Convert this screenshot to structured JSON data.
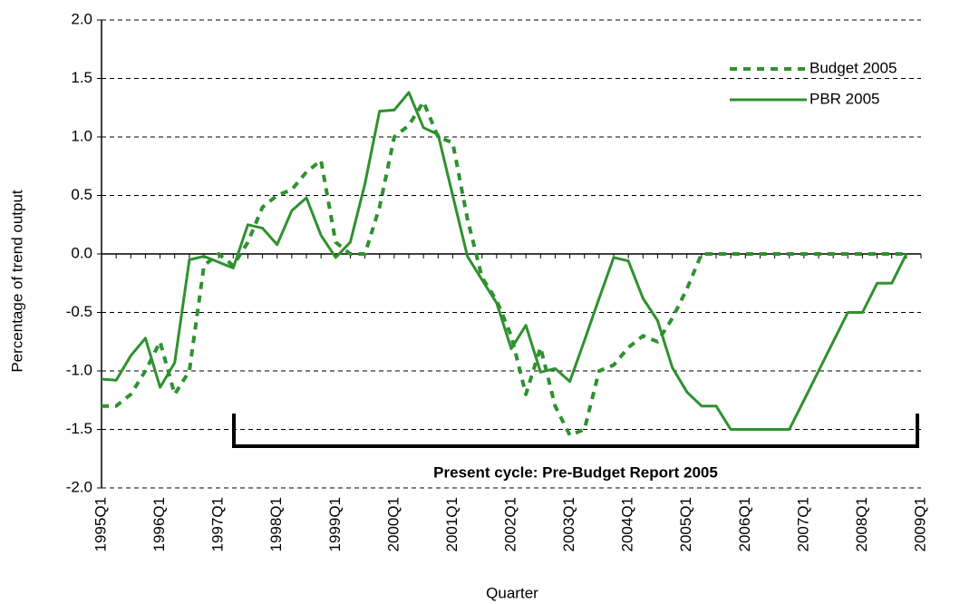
{
  "chart_data": {
    "type": "line",
    "y_label": "Percentage of trend output",
    "x_label": "Quarter",
    "annotation": "Present cycle: Pre-Budget Report 2005",
    "legend": "upper right",
    "grid": true,
    "categories": [
      "1995Q1",
      null,
      null,
      null,
      "1996Q1",
      null,
      null,
      null,
      "1997Q1",
      null,
      null,
      null,
      "1998Q1",
      null,
      null,
      null,
      "1999Q1",
      null,
      null,
      null,
      "2000Q1",
      null,
      null,
      null,
      "2001Q1",
      null,
      null,
      null,
      "2002Q1",
      null,
      null,
      null,
      "2003Q1",
      null,
      null,
      null,
      "2004Q1",
      null,
      null,
      null,
      "2005Q1",
      null,
      null,
      null,
      "2006Q1",
      null,
      null,
      null,
      "2007Q1",
      null,
      null,
      null,
      "2008Q1",
      null,
      null,
      null,
      "2009Q1"
    ],
    "series": [
      {
        "name": "Budget 2005",
        "color": "#2f912f",
        "style": "dashed",
        "values": [
          -1.3,
          -1.3,
          -1.2,
          -1.0,
          -0.75,
          -1.2,
          -1.0,
          -0.1,
          0.0,
          -0.1,
          0.1,
          0.4,
          0.5,
          0.55,
          0.7,
          0.8,
          0.1,
          0.0,
          0.0,
          0.4,
          1.0,
          1.1,
          1.3,
          1.0,
          0.95,
          0.3,
          -0.2,
          -0.4,
          -0.7,
          -1.2,
          -0.8,
          -1.3,
          -1.55,
          -1.5,
          -1.0,
          -0.95,
          -0.8,
          -0.7,
          -0.75,
          -0.55,
          -0.3,
          0.0,
          0.0,
          0.0,
          0.0,
          0.0,
          0.0,
          0.0,
          0.0,
          0.0,
          0.0,
          0.0,
          0.0,
          0.0,
          0.0,
          0.0,
          null
        ]
      },
      {
        "name": "PBR 2005",
        "color": "#2f912f",
        "style": "solid",
        "values": [
          -1.07,
          -1.08,
          -0.87,
          -0.72,
          -1.14,
          -0.93,
          -0.05,
          -0.02,
          -0.07,
          -0.12,
          0.25,
          0.22,
          0.08,
          0.37,
          0.48,
          0.16,
          -0.03,
          0.1,
          0.6,
          1.22,
          1.23,
          1.38,
          1.08,
          1.02,
          0.5,
          -0.02,
          -0.22,
          -0.42,
          -0.81,
          -0.61,
          -1.01,
          -0.98,
          -1.09,
          -0.74,
          -0.38,
          -0.03,
          -0.06,
          -0.38,
          -0.57,
          -0.97,
          -1.18,
          -1.3,
          -1.3,
          -1.5,
          -1.5,
          -1.5,
          -1.5,
          -1.5,
          -1.25,
          -1.0,
          -0.75,
          -0.5,
          -0.5,
          -0.25,
          -0.25,
          0.0,
          null
        ]
      }
    ],
    "ylim": [
      -2,
      2
    ],
    "yticks": [
      {
        "value": -2,
        "label": "-2.0"
      },
      {
        "value": -1.5,
        "label": "-1.5"
      },
      {
        "value": -1,
        "label": "-1.0"
      },
      {
        "value": -0.5,
        "label": "-0.5"
      },
      {
        "value": 0,
        "label": "0.0"
      },
      {
        "value": 0.5,
        "label": "0.5"
      },
      {
        "value": 1,
        "label": "1.0"
      },
      {
        "value": 1.5,
        "label": "1.5"
      },
      {
        "value": 2,
        "label": "2.0"
      }
    ]
  }
}
